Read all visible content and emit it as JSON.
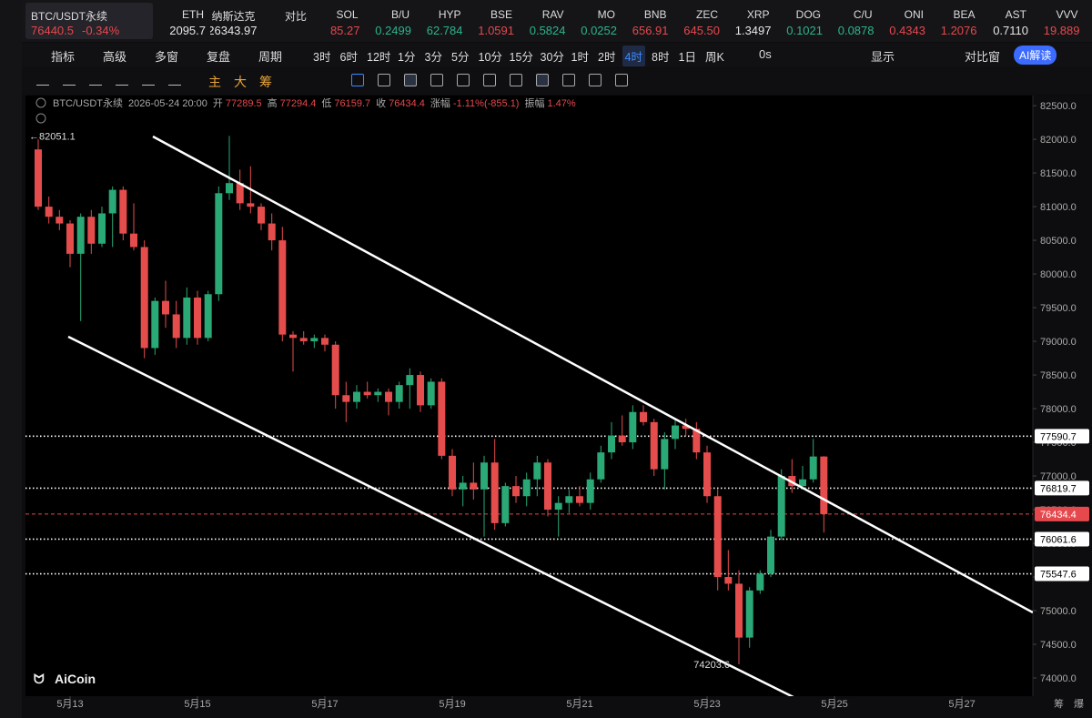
{
  "ticker_bar": [
    {
      "name": "BTC/USDT永续",
      "price": "76440.5",
      "change": "-0.34%",
      "color": "#e5484d"
    },
    {
      "name": "ETH",
      "price": "2095.7",
      "color": "#e6e6e6"
    },
    {
      "name": "纳斯达克",
      "price": "26343.97",
      "color": "#e6e6e6"
    },
    {
      "name": "对比",
      "color": "#e6e6e6"
    },
    {
      "name": "SOL",
      "price": "85.27",
      "color": "#e5484d"
    },
    {
      "name": "B/U",
      "price": "0.2499",
      "color": "#2db38a"
    },
    {
      "name": "HYP",
      "price": "62.784",
      "color": "#2db38a"
    },
    {
      "name": "BSE",
      "price": "1.0591",
      "color": "#e5484d"
    },
    {
      "name": "RAV",
      "price": "0.5824",
      "color": "#2db38a"
    },
    {
      "name": "MO",
      "price": "0.0252",
      "color": "#2db38a"
    },
    {
      "name": "BNB",
      "price": "656.91",
      "color": "#e5484d"
    },
    {
      "name": "ZEC",
      "price": "645.50",
      "color": "#e5484d"
    },
    {
      "name": "XRP",
      "price": "1.3497",
      "color": "#e6e6e6"
    },
    {
      "name": "DOG",
      "price": "0.1021",
      "color": "#2db38a"
    },
    {
      "name": "C/U",
      "price": "0.0878",
      "color": "#2db38a"
    },
    {
      "name": "ONI",
      "price": "0.4343",
      "color": "#e5484d"
    },
    {
      "name": "BEA",
      "price": "1.2076",
      "color": "#e5484d"
    },
    {
      "name": "AST",
      "price": "0.7110",
      "color": "#e6e6e6"
    },
    {
      "name": "VVV",
      "price": "19.889",
      "color": "#e5484d"
    }
  ],
  "toolbar": {
    "tools": [
      "指标",
      "高级",
      "多窗",
      "复盘",
      "周期"
    ],
    "periods": [
      "3时",
      "6时",
      "12时",
      "1分",
      "3分",
      "5分",
      "10分",
      "15分",
      "30分",
      "1时",
      "2时",
      "4时",
      "8时",
      "1日",
      "周K"
    ],
    "selected": "4时",
    "right": [
      "0s",
      "显示",
      "对比窗"
    ],
    "ai": "AI解读",
    "draw_chars": [
      "主",
      "大",
      "筹"
    ]
  },
  "chart_data": {
    "type": "candlestick",
    "title": "BTC/USDT永续",
    "timestamp": "2026-05-24 20:00",
    "ohlc_labels": [
      "开",
      "高",
      "低",
      "收"
    ],
    "change_label": "涨幅",
    "change_text": "-1.11%(-855.1)",
    "amplitude_label": "振幅",
    "amplitude_text": "1.47%",
    "watermark": "AiCoin",
    "footer": [
      "筹",
      "爆"
    ],
    "up_color": "#2aa876",
    "down_color": "#e54d4d",
    "x": [
      12.5,
      12.667,
      12.833,
      13,
      13.167,
      13.333,
      13.5,
      13.667,
      13.833,
      14,
      14.167,
      14.333,
      14.5,
      14.667,
      14.833,
      15,
      15.167,
      15.333,
      15.5,
      15.667,
      15.833,
      16,
      16.167,
      16.333,
      16.5,
      16.667,
      16.833,
      17,
      17.167,
      17.333,
      17.5,
      17.667,
      17.833,
      18,
      18.167,
      18.333,
      18.5,
      18.667,
      18.833,
      19,
      19.167,
      19.333,
      19.5,
      19.667,
      19.833,
      20,
      20.167,
      20.333,
      20.5,
      20.667,
      20.833,
      21,
      21.167,
      21.333,
      21.5,
      21.667,
      21.833,
      22,
      22.167,
      22.333,
      22.5,
      22.667,
      22.833,
      23,
      23.167,
      23.333,
      23.5,
      23.667,
      23.833,
      24,
      24.167,
      24.333,
      24.5,
      24.667,
      24.833
    ],
    "open": [
      81850,
      81000,
      80850,
      80750,
      80300,
      80850,
      80450,
      80900,
      81250,
      80600,
      80400,
      78900,
      79600,
      79400,
      79050,
      79650,
      79050,
      79700,
      81200,
      81350,
      81050,
      81000,
      80750,
      80500,
      79100,
      79050,
      79000,
      79050,
      78950,
      78200,
      78100,
      78250,
      78200,
      78250,
      78100,
      78350,
      78500,
      78050,
      78400,
      77300,
      76800,
      76900,
      76800,
      77200,
      76300,
      76850,
      76700,
      76950,
      77200,
      76500,
      76600,
      76700,
      76600,
      76950,
      77350,
      77600,
      77500,
      77950,
      77800,
      77100,
      77550,
      77750,
      77700,
      77350,
      76700,
      75500,
      75400,
      74600,
      75300,
      75550,
      76100,
      77000,
      76850,
      76950,
      77289.5
    ],
    "high": [
      82000,
      81150,
      80950,
      80800,
      80900,
      80950,
      81000,
      81300,
      81300,
      81050,
      80500,
      79650,
      79900,
      79600,
      79800,
      79750,
      79750,
      81300,
      82051.1,
      81550,
      81600,
      81050,
      80900,
      80700,
      79150,
      79150,
      79100,
      79100,
      79000,
      78400,
      78350,
      78400,
      78300,
      78300,
      78400,
      78600,
      78550,
      78450,
      78450,
      77400,
      77000,
      77200,
      77300,
      77550,
      76900,
      77000,
      77050,
      77300,
      77250,
      76700,
      76800,
      76850,
      77050,
      77450,
      77800,
      77900,
      78050,
      78050,
      77850,
      77650,
      77850,
      77850,
      77800,
      77450,
      76800,
      75900,
      75600,
      75350,
      75600,
      76200,
      77100,
      77250,
      77150,
      77550,
      77294.4
    ],
    "low": [
      80950,
      80750,
      80650,
      80100,
      79300,
      80300,
      80400,
      80400,
      80500,
      80350,
      78750,
      78800,
      79200,
      78900,
      78950,
      78950,
      79000,
      79600,
      81100,
      80950,
      80900,
      80650,
      80350,
      79000,
      78550,
      78950,
      78900,
      78850,
      78000,
      77800,
      78000,
      78150,
      78100,
      77900,
      78000,
      78000,
      77950,
      78000,
      77250,
      76700,
      76550,
      76650,
      76100,
      76200,
      76250,
      76600,
      76550,
      76700,
      76400,
      76100,
      76450,
      76550,
      76500,
      76900,
      77250,
      77450,
      77400,
      77750,
      77000,
      76800,
      77400,
      77600,
      77250,
      76600,
      75300,
      75300,
      74203.6,
      74450,
      75250,
      75500,
      76050,
      76750,
      76800,
      76900,
      76159.7
    ],
    "close": [
      81000,
      80850,
      80750,
      80300,
      80850,
      80450,
      80900,
      81250,
      80600,
      80400,
      78900,
      79600,
      79400,
      79050,
      79650,
      79050,
      79700,
      81200,
      81350,
      81050,
      81000,
      80750,
      80500,
      79100,
      79050,
      79000,
      79050,
      78950,
      78200,
      78100,
      78250,
      78200,
      78250,
      78100,
      78350,
      78500,
      78050,
      78400,
      77300,
      76800,
      76900,
      76800,
      77200,
      76300,
      76850,
      76700,
      76950,
      77200,
      76500,
      76600,
      76700,
      76600,
      76950,
      77350,
      77600,
      77500,
      77950,
      77800,
      77100,
      77550,
      77750,
      77700,
      77350,
      76700,
      75500,
      75400,
      74600,
      75300,
      75550,
      76100,
      77000,
      76850,
      76950,
      77289.5,
      76434.4
    ],
    "price_lines": [
      77590.7,
      76819.7,
      76061.6,
      75547.6
    ],
    "xlim": [
      12.3,
      28.114
    ],
    "ylim": [
      73730,
      82650
    ],
    "xticks": [
      {
        "value": 13,
        "label": "5月13"
      },
      {
        "value": 15,
        "label": "5月15"
      },
      {
        "value": 17,
        "label": "5月17"
      },
      {
        "value": 19,
        "label": "5月19"
      },
      {
        "value": 21,
        "label": "5月21"
      },
      {
        "value": 23,
        "label": "5月23"
      },
      {
        "value": 25,
        "label": "5月25"
      },
      {
        "value": 27,
        "label": "5月27"
      }
    ],
    "yticks": [
      {
        "value": 74000,
        "label": "74000.0"
      },
      {
        "value": 74500,
        "label": "74500.0"
      },
      {
        "value": 75000,
        "label": "75000.0"
      },
      {
        "value": 75500,
        "label": "75500.0"
      },
      {
        "value": 76000,
        "label": "76000.0"
      },
      {
        "value": 76500,
        "label": "76500.0"
      },
      {
        "value": 77000,
        "label": "77000.0"
      },
      {
        "value": 77500,
        "label": "77500.0"
      },
      {
        "value": 78000,
        "label": "78000.0"
      },
      {
        "value": 78500,
        "label": "78500.0"
      },
      {
        "value": 79000,
        "label": "79000.0"
      },
      {
        "value": 79500,
        "label": "79500.0"
      },
      {
        "value": 80000,
        "label": "80000.0"
      },
      {
        "value": 80500,
        "label": "80500.0"
      },
      {
        "value": 81000,
        "label": "81000.0"
      },
      {
        "value": 81500,
        "label": "81500.0"
      },
      {
        "value": 82000,
        "label": "82000.0"
      },
      {
        "value": 82500,
        "label": "82500.0"
      }
    ]
  }
}
